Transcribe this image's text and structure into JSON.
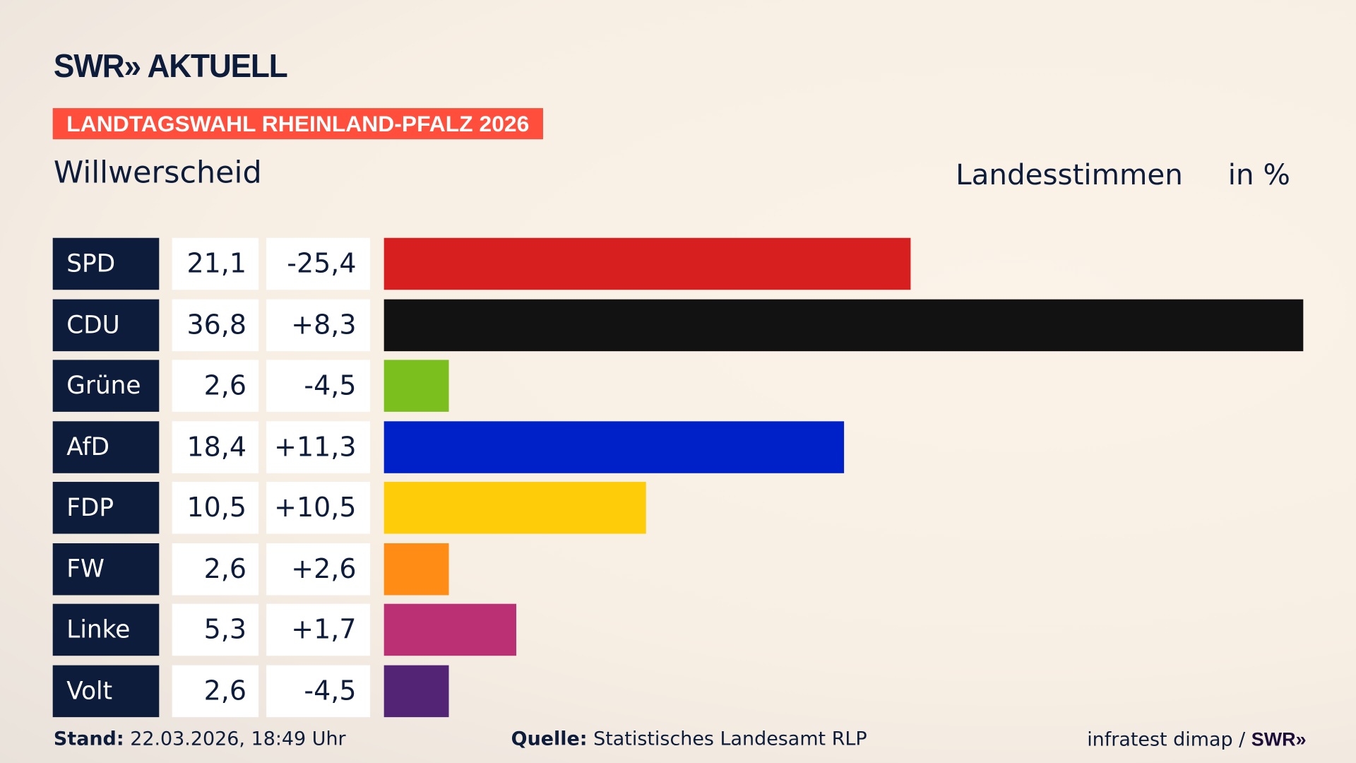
{
  "header": {
    "logo": "SWR» AKTUELL",
    "banner": "LANDTAGSWAHL RHEINLAND-PFALZ 2026",
    "place": "Willwerscheid",
    "vote_type": "Landesstimmen",
    "unit": "in %"
  },
  "chart_data": {
    "type": "bar",
    "orientation": "horizontal",
    "xlim": [
      0,
      36.8
    ],
    "categories": [
      "SPD",
      "CDU",
      "Grüne",
      "AfD",
      "FDP",
      "FW",
      "Linke",
      "Volt"
    ],
    "values": [
      21.1,
      36.8,
      2.6,
      18.4,
      10.5,
      2.6,
      5.3,
      2.6
    ],
    "value_labels": [
      "21,1",
      "36,8",
      "2,6",
      "18,4",
      "10,5",
      "2,6",
      "5,3",
      "2,6"
    ],
    "diff_labels": [
      "-25,4",
      "+8,3",
      "-4,5",
      "+11,3",
      "+10,5",
      "+2,6",
      "+1,7",
      "-4,5"
    ],
    "colors": [
      "#d81f1f",
      "#121212",
      "#7abf1d",
      "#0021c8",
      "#ffcc0a",
      "#ff8c14",
      "#bb3074",
      "#532375"
    ]
  },
  "footer": {
    "stand_label": "Stand:",
    "stand_value": "22.03.2026, 18:49 Uhr",
    "source_label": "Quelle:",
    "source_value": "Statistisches Landesamt RLP",
    "credit": "infratest dimap / ",
    "credit_logo": "SWR»"
  }
}
